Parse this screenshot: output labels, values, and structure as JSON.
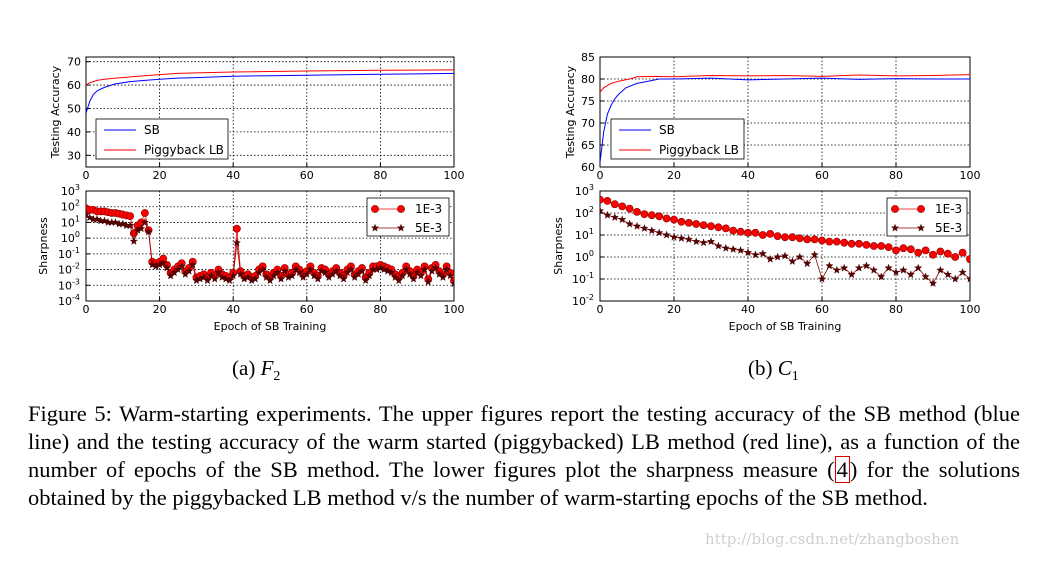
{
  "chart_data": [
    {
      "type": "line",
      "panel": "(a) F2 upper",
      "title": "",
      "xlabel": "",
      "ylabel": "Testing Accuracy",
      "xlim": [
        0,
        100
      ],
      "ylim": [
        25,
        72
      ],
      "yticks": [
        30,
        40,
        50,
        60,
        70
      ],
      "xticks": [
        0,
        20,
        40,
        60,
        80,
        100
      ],
      "grid": true,
      "legend_position": "lower-right",
      "legend_entries": [
        "SB",
        "Piggyback LB"
      ],
      "series": [
        {
          "name": "SB",
          "color": "#0000ff",
          "x": [
            0,
            1,
            2,
            3,
            5,
            8,
            12,
            16,
            20,
            25,
            30,
            40,
            50,
            60,
            70,
            80,
            90,
            100
          ],
          "values": [
            48,
            53,
            56,
            57.5,
            59,
            60.5,
            61.5,
            62,
            62.5,
            63,
            63.2,
            63.8,
            64,
            64.2,
            64.4,
            64.6,
            64.8,
            65
          ]
        },
        {
          "name": "Piggyback LB",
          "color": "#ff0000",
          "x": [
            0,
            1,
            2,
            3,
            5,
            8,
            12,
            16,
            20,
            25,
            30,
            40,
            50,
            60,
            70,
            80,
            90,
            100
          ],
          "values": [
            60,
            61,
            61.5,
            62,
            62.5,
            63,
            63.5,
            64,
            64.5,
            65,
            65.2,
            65.6,
            65.8,
            66,
            66.2,
            66.3,
            66.4,
            66.5
          ]
        }
      ]
    },
    {
      "type": "line",
      "panel": "(a) F2 lower",
      "title": "",
      "xlabel": "Epoch of SB Training",
      "ylabel": "Sharpness",
      "xlim": [
        0,
        100
      ],
      "ylim_log10": [
        -4,
        3
      ],
      "yticks": [
        "10-4",
        "10-3",
        "10-2",
        "10-1",
        "100",
        "101",
        "102",
        "103"
      ],
      "xticks": [
        0,
        20,
        40,
        60,
        80,
        100
      ],
      "grid": true,
      "legend_position": "upper-right",
      "legend_entries": [
        "1E-3",
        "5E-3"
      ],
      "series": [
        {
          "name": "1E-3",
          "color": "#ff0000",
          "marker": "circle",
          "x": [
            0,
            1,
            2,
            3,
            4,
            5,
            6,
            7,
            8,
            9,
            10,
            11,
            12,
            13,
            14,
            15,
            16,
            17,
            18,
            19,
            20,
            21,
            22,
            23,
            24,
            25,
            26,
            27,
            28,
            29,
            30,
            31,
            32,
            33,
            34,
            35,
            36,
            37,
            38,
            39,
            40,
            41,
            42,
            43,
            44,
            45,
            46,
            47,
            48,
            49,
            50,
            51,
            52,
            53,
            54,
            55,
            56,
            57,
            58,
            59,
            60,
            61,
            62,
            63,
            64,
            65,
            66,
            67,
            68,
            69,
            70,
            71,
            72,
            73,
            74,
            75,
            76,
            77,
            78,
            79,
            80,
            81,
            82,
            83,
            84,
            85,
            86,
            87,
            88,
            89,
            90,
            91,
            92,
            93,
            94,
            95,
            96,
            97,
            98,
            99,
            100
          ],
          "values_log10": [
            1.9,
            1.8,
            1.8,
            1.7,
            1.7,
            1.7,
            1.65,
            1.6,
            1.6,
            1.55,
            1.5,
            1.45,
            1.4,
            0.3,
            0.8,
            1.0,
            1.6,
            0.5,
            -1.5,
            -1.6,
            -1.5,
            -1.3,
            -1.7,
            -2.2,
            -2.0,
            -1.8,
            -1.6,
            -2.1,
            -1.9,
            -1.5,
            -2.5,
            -2.4,
            -2.3,
            -2.5,
            -2.2,
            -2.4,
            -2.0,
            -2.3,
            -2.4,
            -2.5,
            -2.2,
            0.6,
            -2.1,
            -2.4,
            -2.3,
            -2.5,
            -2.4,
            -2.0,
            -1.8,
            -2.3,
            -2.5,
            -2.2,
            -2.0,
            -2.4,
            -1.9,
            -2.3,
            -2.2,
            -1.8,
            -2.0,
            -2.3,
            -2.1,
            -1.8,
            -2.2,
            -2.4,
            -1.9,
            -2.0,
            -2.3,
            -2.1,
            -1.9,
            -2.2,
            -2.4,
            -2.0,
            -1.8,
            -2.3,
            -2.1,
            -1.9,
            -2.5,
            -2.2,
            -1.8,
            -1.8,
            -1.7,
            -1.8,
            -1.9,
            -2.0,
            -2.3,
            -2.5,
            -2.2,
            -1.8,
            -2.1,
            -2.4,
            -2.0,
            -2.2,
            -1.8,
            -2.6,
            -1.9,
            -1.7,
            -2.1,
            -2.3,
            -1.8,
            -2.2,
            -2.7
          ]
        },
        {
          "name": "5E-3",
          "color": "#8b0000",
          "marker": "star",
          "x": [
            0,
            1,
            2,
            3,
            4,
            5,
            6,
            7,
            8,
            9,
            10,
            11,
            12,
            13,
            14,
            15,
            16,
            17,
            18,
            19,
            20,
            21,
            22,
            23,
            24,
            25,
            26,
            27,
            28,
            29,
            30,
            31,
            32,
            33,
            34,
            35,
            36,
            37,
            38,
            39,
            40,
            41,
            42,
            43,
            44,
            45,
            46,
            47,
            48,
            49,
            50,
            51,
            52,
            53,
            54,
            55,
            56,
            57,
            58,
            59,
            60,
            61,
            62,
            63,
            64,
            65,
            66,
            67,
            68,
            69,
            70,
            71,
            72,
            73,
            74,
            75,
            76,
            77,
            78,
            79,
            80,
            81,
            82,
            83,
            84,
            85,
            86,
            87,
            88,
            89,
            90,
            91,
            92,
            93,
            94,
            95,
            96,
            97,
            98,
            99,
            100
          ],
          "values_log10": [
            1.5,
            1.3,
            1.2,
            1.2,
            1.1,
            1.1,
            1.0,
            1.0,
            1.0,
            0.9,
            0.9,
            0.8,
            0.8,
            -0.2,
            0.5,
            0.6,
            1.0,
            0.4,
            -1.7,
            -1.8,
            -1.7,
            -1.6,
            -1.9,
            -2.4,
            -2.2,
            -2.0,
            -1.8,
            -2.3,
            -2.1,
            -1.7,
            -2.7,
            -2.6,
            -2.5,
            -2.7,
            -2.4,
            -2.6,
            -2.2,
            -2.5,
            -2.6,
            -2.7,
            -2.4,
            -0.3,
            -2.3,
            -2.6,
            -2.5,
            -2.7,
            -2.6,
            -2.2,
            -2.0,
            -2.5,
            -2.7,
            -2.4,
            -2.2,
            -2.6,
            -2.1,
            -2.5,
            -2.4,
            -2.0,
            -2.2,
            -2.5,
            -2.3,
            -2.0,
            -2.4,
            -2.6,
            -2.1,
            -2.2,
            -2.5,
            -2.3,
            -2.1,
            -2.4,
            -2.6,
            -2.2,
            -2.0,
            -2.5,
            -2.3,
            -2.1,
            -2.7,
            -2.4,
            -2.0,
            -2.0,
            -1.9,
            -2.0,
            -2.1,
            -2.2,
            -2.5,
            -2.7,
            -2.4,
            -2.0,
            -2.3,
            -2.6,
            -2.2,
            -2.4,
            -2.0,
            -2.8,
            -2.1,
            -1.9,
            -2.3,
            -2.5,
            -2.0,
            -2.4,
            -2.9
          ]
        }
      ]
    },
    {
      "type": "line",
      "panel": "(b) C1 upper",
      "title": "",
      "xlabel": "",
      "ylabel": "Testing Accuracy",
      "xlim": [
        0,
        100
      ],
      "ylim": [
        60,
        85
      ],
      "yticks": [
        60,
        65,
        70,
        75,
        80,
        85
      ],
      "xticks": [
        0,
        20,
        40,
        60,
        80,
        100
      ],
      "grid": true,
      "legend_position": "lower-right",
      "legend_entries": [
        "SB",
        "Piggyback LB"
      ],
      "series": [
        {
          "name": "SB",
          "color": "#0000ff",
          "x": [
            0,
            1,
            2,
            3,
            4,
            5,
            7,
            10,
            13,
            16,
            20,
            30,
            40,
            50,
            60,
            70,
            80,
            90,
            100
          ],
          "values": [
            61,
            68,
            72,
            74,
            75.5,
            76.5,
            78,
            79,
            79.5,
            80,
            80,
            80.2,
            79.8,
            80,
            80.2,
            79.9,
            80.1,
            80,
            80
          ]
        },
        {
          "name": "Piggyback LB",
          "color": "#ff0000",
          "x": [
            0,
            1,
            2,
            3,
            5,
            8,
            10,
            15,
            20,
            30,
            40,
            50,
            60,
            70,
            80,
            90,
            100
          ],
          "values": [
            77,
            78,
            78.5,
            79,
            79.5,
            80,
            80.5,
            80.6,
            80.5,
            80.8,
            80.7,
            80.8,
            80.6,
            80.9,
            80.7,
            80.8,
            81
          ]
        }
      ]
    },
    {
      "type": "line",
      "panel": "(b) C1 lower",
      "title": "",
      "xlabel": "Epoch of SB Training",
      "ylabel": "Sharpness",
      "xlim": [
        0,
        100
      ],
      "ylim_log10": [
        -2,
        3
      ],
      "yticks": [
        "10-2",
        "10-1",
        "100",
        "101",
        "102",
        "103"
      ],
      "xticks": [
        0,
        20,
        40,
        60,
        80,
        100
      ],
      "grid": true,
      "legend_position": "upper-right",
      "legend_entries": [
        "1E-3",
        "5E-3"
      ],
      "series": [
        {
          "name": "1E-3",
          "color": "#ff0000",
          "marker": "circle",
          "x": [
            0,
            2,
            4,
            6,
            8,
            10,
            12,
            14,
            16,
            18,
            20,
            22,
            24,
            26,
            28,
            30,
            32,
            34,
            36,
            38,
            40,
            42,
            44,
            46,
            48,
            50,
            52,
            54,
            56,
            58,
            60,
            62,
            64,
            66,
            68,
            70,
            72,
            74,
            76,
            78,
            80,
            82,
            84,
            86,
            88,
            90,
            92,
            94,
            96,
            98,
            100
          ],
          "values_log10": [
            2.6,
            2.55,
            2.4,
            2.3,
            2.2,
            2.05,
            1.95,
            1.9,
            1.85,
            1.75,
            1.7,
            1.6,
            1.55,
            1.5,
            1.45,
            1.4,
            1.35,
            1.3,
            1.2,
            1.15,
            1.1,
            1.1,
            1.0,
            1.05,
            0.95,
            0.9,
            0.9,
            0.85,
            0.8,
            0.8,
            0.75,
            0.7,
            0.7,
            0.65,
            0.6,
            0.6,
            0.55,
            0.5,
            0.5,
            0.45,
            0.3,
            0.4,
            0.35,
            0.2,
            0.3,
            0.1,
            0.25,
            0.15,
            0.0,
            0.2,
            -0.1
          ]
        },
        {
          "name": "5E-3",
          "color": "#8b0000",
          "marker": "star",
          "x": [
            0,
            2,
            4,
            6,
            8,
            10,
            12,
            14,
            16,
            18,
            20,
            22,
            24,
            26,
            28,
            30,
            32,
            34,
            36,
            38,
            40,
            42,
            44,
            46,
            48,
            50,
            52,
            54,
            56,
            58,
            60,
            62,
            64,
            66,
            68,
            70,
            72,
            74,
            76,
            78,
            80,
            82,
            84,
            86,
            88,
            90,
            92,
            94,
            96,
            98,
            100
          ],
          "values_log10": [
            2.1,
            1.9,
            1.8,
            1.7,
            1.5,
            1.4,
            1.3,
            1.2,
            1.1,
            1.0,
            0.9,
            0.85,
            0.8,
            0.7,
            0.65,
            0.7,
            0.5,
            0.4,
            0.35,
            0.3,
            0.2,
            0.1,
            0.15,
            -0.1,
            0.0,
            0.05,
            -0.2,
            0.0,
            -0.3,
            0.1,
            -1.0,
            -0.4,
            -0.6,
            -0.5,
            -0.8,
            -0.5,
            -0.4,
            -0.6,
            -0.9,
            -0.5,
            -0.7,
            -0.6,
            -0.8,
            -0.5,
            -0.9,
            -1.2,
            -0.6,
            -0.8,
            -1.0,
            -0.7,
            -1.0
          ]
        }
      ]
    }
  ],
  "panel_labels": {
    "a_prefix": "(a) ",
    "a_symbol": "F",
    "a_sub": "2",
    "b_prefix": "(b) ",
    "b_symbol": "C",
    "b_sub": "1"
  },
  "caption": {
    "part1": "Figure 5: Warm-starting experiments. The upper figures report the testing accuracy of the SB method (blue line) and the testing accuracy of the warm started (piggybacked) LB method (red line), as a function of the number of epochs of the SB method. The lower figures plot the sharpness measure (",
    "ref": "4",
    "part2": ") for the solutions obtained by the piggybacked LB method v/s the number of warm-starting epochs of the SB method."
  },
  "watermark": "http://blog.csdn.net/zhangboshen"
}
